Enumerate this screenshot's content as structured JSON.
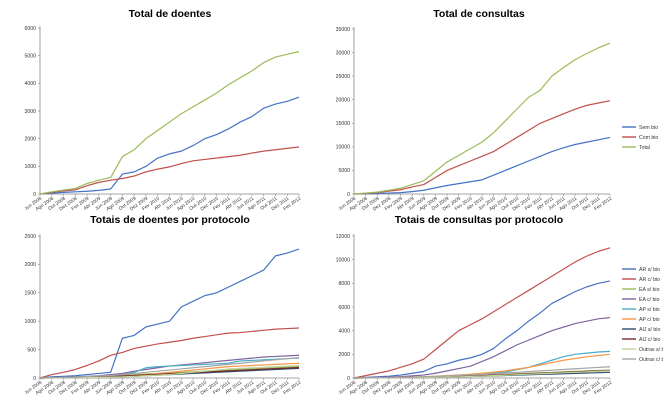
{
  "x_labels": [
    "Jun 2008",
    "Ago 2008",
    "Out 2008",
    "Dez 2008",
    "Fev 2009",
    "Abr 2009",
    "Jun 2009",
    "Ago 2009",
    "Out 2009",
    "Dez 2009",
    "Fev 2010",
    "Abr 2010",
    "Jun 2010",
    "Ago 2010",
    "Out 2010",
    "Dez 2010",
    "Fev 2011",
    "Abr 2011",
    "Jun 2011",
    "Ago 2011",
    "Out 2011",
    "Dez 2011",
    "Fev 2012"
  ],
  "chart_data": [
    {
      "type": "line",
      "title": "Total de doentes",
      "ylim": [
        0,
        6000
      ],
      "yticks": [
        0,
        1000,
        2000,
        3000,
        4000,
        5000,
        6000
      ],
      "series": [
        {
          "color": "#4472C4",
          "values": [
            0,
            30,
            60,
            80,
            100,
            130,
            180,
            720,
            800,
            1000,
            1300,
            1450,
            1550,
            1750,
            2000,
            2150,
            2350,
            2600,
            2800,
            3100,
            3250,
            3350,
            3500
          ]
        },
        {
          "color": "#C0504D",
          "values": [
            0,
            60,
            110,
            150,
            300,
            420,
            500,
            560,
            650,
            800,
            900,
            980,
            1100,
            1200,
            1250,
            1300,
            1350,
            1400,
            1480,
            1550,
            1600,
            1650,
            1700
          ]
        },
        {
          "color": "#9BBB59",
          "values": [
            0,
            80,
            140,
            200,
            380,
            500,
            600,
            1350,
            1600,
            2000,
            2300,
            2600,
            2900,
            3150,
            3400,
            3650,
            3950,
            4200,
            4450,
            4750,
            4950,
            5050,
            5150
          ]
        }
      ]
    },
    {
      "type": "line",
      "title": "Total de consultas",
      "ylim": [
        0,
        35000
      ],
      "yticks": [
        0,
        5000,
        10000,
        15000,
        20000,
        25000,
        30000,
        35000
      ],
      "legend_position": "right",
      "series": [
        {
          "name": "Sem bio",
          "color": "#4472C4",
          "values": [
            0,
            50,
            100,
            200,
            300,
            500,
            800,
            1300,
            1800,
            2200,
            2600,
            3000,
            4000,
            5000,
            6000,
            7000,
            8000,
            9000,
            9800,
            10500,
            11000,
            11500,
            12000
          ]
        },
        {
          "name": "Com bio",
          "color": "#C0504D",
          "values": [
            0,
            150,
            300,
            600,
            900,
            1500,
            2000,
            3500,
            5000,
            6000,
            7000,
            8000,
            9000,
            10500,
            12000,
            13500,
            15000,
            16000,
            17000,
            18000,
            18800,
            19300,
            19800
          ]
        },
        {
          "name": "Total",
          "color": "#9BBB59",
          "values": [
            0,
            200,
            400,
            800,
            1200,
            2000,
            2800,
            4800,
            6800,
            8200,
            9600,
            11000,
            13000,
            15500,
            18000,
            20500,
            22000,
            25000,
            26800,
            28500,
            29800,
            31000,
            32000
          ]
        }
      ]
    },
    {
      "type": "line",
      "title": "Totais de doentes por protocolo",
      "ylim": [
        0,
        2500
      ],
      "yticks": [
        0,
        500,
        1000,
        1500,
        2000,
        2500
      ],
      "series": [
        {
          "color": "#4472C4",
          "values": [
            0,
            20,
            30,
            40,
            60,
            80,
            100,
            700,
            750,
            900,
            950,
            1000,
            1250,
            1350,
            1450,
            1500,
            1600,
            1700,
            1800,
            1900,
            2150,
            2200,
            2270
          ]
        },
        {
          "color": "#C0504D",
          "values": [
            0,
            60,
            100,
            150,
            220,
            300,
            400,
            450,
            520,
            560,
            600,
            630,
            660,
            700,
            730,
            760,
            790,
            800,
            820,
            840,
            860,
            870,
            880
          ]
        },
        {
          "color": "#9BBB59",
          "values": [
            0,
            5,
            10,
            15,
            20,
            30,
            40,
            50,
            60,
            70,
            80,
            90,
            100,
            110,
            120,
            130,
            140,
            150,
            160,
            170,
            180,
            190,
            200
          ]
        },
        {
          "color": "#8064A2",
          "values": [
            0,
            5,
            10,
            20,
            30,
            40,
            60,
            80,
            120,
            150,
            180,
            210,
            230,
            250,
            270,
            290,
            310,
            330,
            350,
            370,
            380,
            390,
            400
          ]
        },
        {
          "color": "#4BACC6",
          "values": [
            0,
            5,
            10,
            15,
            20,
            25,
            35,
            60,
            100,
            180,
            200,
            210,
            220,
            230,
            240,
            250,
            260,
            300,
            310,
            320,
            330,
            340,
            350
          ]
        },
        {
          "color": "#F79646",
          "values": [
            0,
            5,
            8,
            10,
            15,
            20,
            25,
            30,
            40,
            60,
            80,
            100,
            120,
            140,
            160,
            180,
            200,
            210,
            220,
            230,
            240,
            250,
            260
          ]
        },
        {
          "color": "#2C4D75",
          "values": [
            0,
            2,
            4,
            6,
            10,
            15,
            20,
            25,
            30,
            40,
            50,
            60,
            70,
            80,
            90,
            100,
            110,
            120,
            130,
            140,
            150,
            160,
            170
          ]
        },
        {
          "color": "#772C2A",
          "values": [
            0,
            3,
            6,
            9,
            12,
            18,
            25,
            35,
            45,
            55,
            65,
            75,
            85,
            95,
            105,
            115,
            125,
            135,
            145,
            155,
            165,
            175,
            185
          ]
        },
        {
          "color": "#C3D69B",
          "values": [
            0,
            2,
            4,
            6,
            8,
            10,
            15,
            20,
            30,
            40,
            50,
            60,
            80,
            100,
            120,
            140,
            160,
            170,
            180,
            190,
            200,
            210,
            220
          ]
        },
        {
          "color": "#A5A5A5",
          "values": [
            0,
            5,
            10,
            15,
            25,
            35,
            45,
            60,
            80,
            100,
            120,
            140,
            160,
            180,
            200,
            220,
            240,
            260,
            280,
            300,
            320,
            340,
            360
          ]
        }
      ]
    },
    {
      "type": "line",
      "title": "Totais de consultas por protocolo",
      "ylim": [
        0,
        12000
      ],
      "yticks": [
        0,
        2000,
        4000,
        6000,
        8000,
        10000,
        12000
      ],
      "legend_position": "right",
      "series": [
        {
          "name": "AR s/ bio",
          "color": "#4472C4",
          "values": [
            0,
            50,
            100,
            150,
            250,
            400,
            550,
            1000,
            1200,
            1500,
            1700,
            2000,
            2500,
            3300,
            4000,
            4800,
            5500,
            6300,
            6800,
            7300,
            7700,
            8000,
            8200
          ]
        },
        {
          "name": "AR c/ bio",
          "color": "#C0504D",
          "values": [
            0,
            200,
            400,
            600,
            900,
            1200,
            1600,
            2400,
            3200,
            4000,
            4500,
            5000,
            5600,
            6200,
            6800,
            7400,
            8000,
            8600,
            9200,
            9800,
            10300,
            10700,
            11000
          ]
        },
        {
          "name": "EA s/ bio",
          "color": "#9BBB59",
          "values": [
            0,
            10,
            20,
            40,
            60,
            80,
            100,
            130,
            160,
            190,
            220,
            250,
            280,
            320,
            360,
            400,
            440,
            480,
            520,
            560,
            600,
            640,
            680
          ]
        },
        {
          "name": "EA c/ bio",
          "color": "#8064A2",
          "values": [
            0,
            20,
            40,
            80,
            120,
            180,
            250,
            400,
            600,
            800,
            1000,
            1400,
            1800,
            2300,
            2800,
            3200,
            3600,
            4000,
            4300,
            4600,
            4800,
            5000,
            5100
          ]
        },
        {
          "name": "AP s/ bio",
          "color": "#4BACC6",
          "values": [
            0,
            10,
            20,
            30,
            50,
            70,
            90,
            120,
            150,
            200,
            250,
            300,
            400,
            500,
            700,
            900,
            1200,
            1500,
            1800,
            2000,
            2100,
            2200,
            2250
          ]
        },
        {
          "name": "AP c/ bio",
          "color": "#F79646",
          "values": [
            0,
            10,
            20,
            40,
            60,
            80,
            110,
            150,
            200,
            260,
            320,
            400,
            500,
            600,
            750,
            900,
            1100,
            1300,
            1500,
            1650,
            1800,
            1900,
            2000
          ]
        },
        {
          "name": "AIJ s/ bio",
          "color": "#2C4D75",
          "values": [
            0,
            5,
            10,
            15,
            25,
            35,
            45,
            60,
            80,
            100,
            120,
            150,
            180,
            210,
            240,
            270,
            300,
            330,
            360,
            390,
            420,
            450,
            480
          ]
        },
        {
          "name": "AIJ c/ bio",
          "color": "#772C2A",
          "values": [
            0,
            5,
            10,
            20,
            30,
            45,
            60,
            80,
            100,
            130,
            160,
            200,
            240,
            280,
            320,
            360,
            400,
            440,
            480,
            520,
            560,
            600,
            640
          ]
        },
        {
          "name": "Outras s/ bio",
          "color": "#C3D69B",
          "values": [
            0,
            5,
            10,
            15,
            20,
            30,
            40,
            60,
            80,
            100,
            130,
            160,
            200,
            240,
            280,
            320,
            360,
            400,
            440,
            480,
            520,
            560,
            600
          ]
        },
        {
          "name": "Outras c/ bio",
          "color": "#A5A5A5",
          "values": [
            0,
            10,
            20,
            30,
            50,
            70,
            100,
            140,
            180,
            220,
            260,
            300,
            360,
            420,
            480,
            540,
            600,
            660,
            720,
            780,
            840,
            900,
            950
          ]
        }
      ]
    }
  ]
}
